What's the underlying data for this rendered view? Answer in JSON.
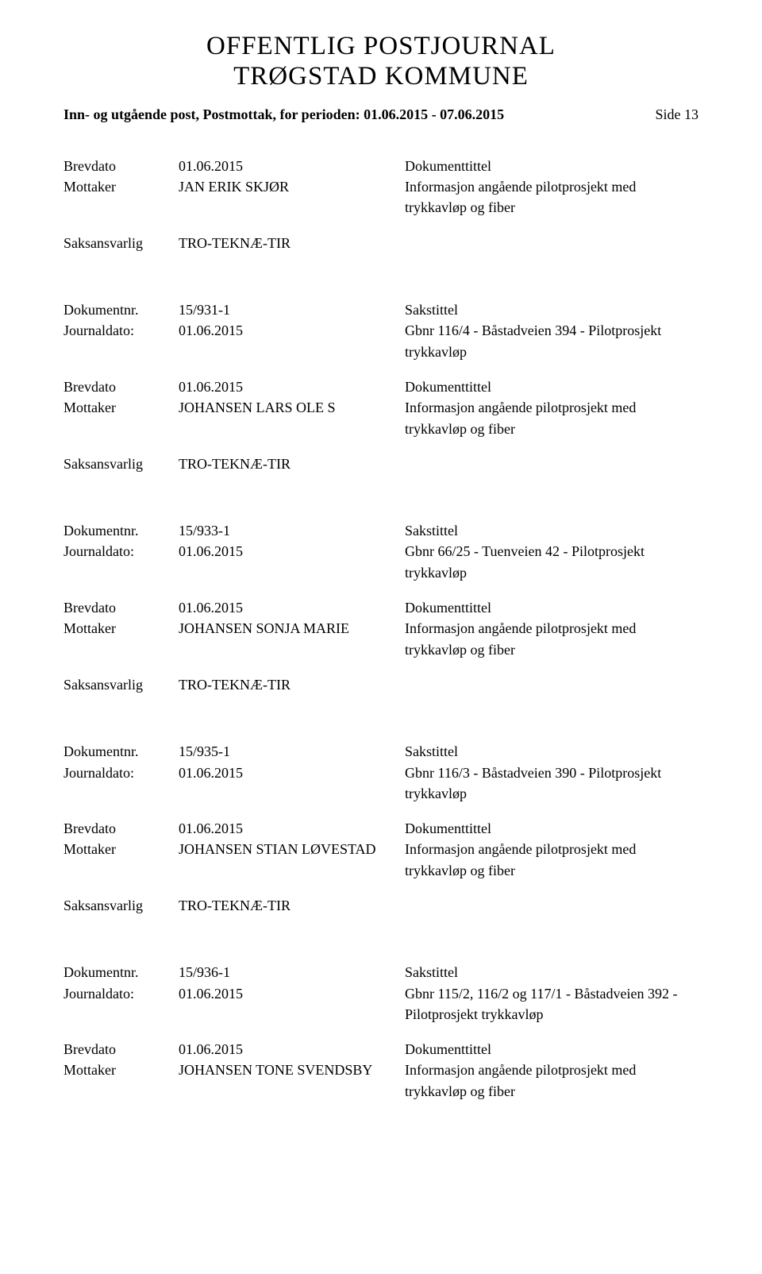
{
  "header": {
    "title_line1": "OFFENTLIG POSTJOURNAL",
    "title_line2": "TRØGSTAD KOMMUNE"
  },
  "subheader": {
    "text": "Inn- og utgående post, Postmottak, for perioden: 01.06.2015 - 07.06.2015",
    "page": "Side 13"
  },
  "labels": {
    "brevdato": "Brevdato",
    "mottaker": "Mottaker",
    "saksansvarlig": "Saksansvarlig",
    "dokumentnr": "Dokumentnr.",
    "journaldato": "Journaldato:",
    "dokumenttittel": "Dokumenttittel",
    "sakstittel": "Sakstittel"
  },
  "entries": [
    {
      "brevdato": "01.06.2015",
      "mottaker": "JAN ERIK SKJØR",
      "info_lines": [
        "Informasjon angående pilotprosjekt med",
        "trykkavløp og fiber"
      ],
      "saksansvarlig": "TRO-TEKNÆ-TIR"
    },
    {
      "pre": {
        "dokumentnr": "15/931-1",
        "journaldato": "01.06.2015",
        "sak_lines": [
          "Gbnr 116/4 - Båstadveien 394 - Pilotprosjekt",
          "trykkavløp"
        ]
      },
      "brevdato": "01.06.2015",
      "mottaker": "JOHANSEN LARS OLE S",
      "info_lines": [
        "Informasjon angående pilotprosjekt med",
        "trykkavløp og fiber"
      ],
      "saksansvarlig": "TRO-TEKNÆ-TIR"
    },
    {
      "pre": {
        "dokumentnr": "15/933-1",
        "journaldato": "01.06.2015",
        "sak_lines": [
          "Gbnr 66/25 - Tuenveien 42 - Pilotprosjekt",
          "trykkavløp"
        ]
      },
      "brevdato": "01.06.2015",
      "mottaker": "JOHANSEN SONJA MARIE",
      "info_lines": [
        "Informasjon angående pilotprosjekt med",
        "trykkavløp og fiber"
      ],
      "saksansvarlig": "TRO-TEKNÆ-TIR"
    },
    {
      "pre": {
        "dokumentnr": "15/935-1",
        "journaldato": "01.06.2015",
        "sak_lines": [
          "Gbnr 116/3 - Båstadveien 390 - Pilotprosjekt",
          "trykkavløp"
        ]
      },
      "brevdato": "01.06.2015",
      "mottaker": "JOHANSEN STIAN LØVESTAD",
      "info_lines": [
        "Informasjon angående pilotprosjekt med",
        "trykkavløp og fiber"
      ],
      "saksansvarlig": "TRO-TEKNÆ-TIR"
    },
    {
      "pre": {
        "dokumentnr": "15/936-1",
        "journaldato": "01.06.2015",
        "sak_lines": [
          "Gbnr 115/2, 116/2 og 117/1 - Båstadveien 392 -",
          "Pilotprosjekt trykkavløp"
        ]
      },
      "brevdato": "01.06.2015",
      "mottaker": "JOHANSEN TONE SVENDSBY",
      "info_lines": [
        "Informasjon angående pilotprosjekt med",
        "trykkavløp og fiber"
      ]
    }
  ]
}
